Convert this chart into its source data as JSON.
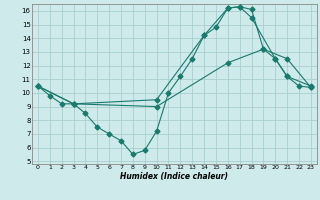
{
  "xlabel": "Humidex (Indice chaleur)",
  "xlim": [
    -0.5,
    23.5
  ],
  "ylim": [
    4.8,
    16.5
  ],
  "xticks": [
    0,
    1,
    2,
    3,
    4,
    5,
    6,
    7,
    8,
    9,
    10,
    11,
    12,
    13,
    14,
    15,
    16,
    17,
    18,
    19,
    20,
    21,
    22,
    23
  ],
  "yticks": [
    5,
    6,
    7,
    8,
    9,
    10,
    11,
    12,
    13,
    14,
    15,
    16
  ],
  "bg_color": "#ceeaea",
  "grid_color": "#aacece",
  "line_color": "#1a7a6e",
  "line1_x": [
    0,
    1,
    2,
    3,
    4,
    5,
    6,
    7,
    8,
    9,
    10,
    11,
    12,
    13,
    14,
    15,
    16,
    17,
    18,
    19,
    20,
    21,
    22,
    23
  ],
  "line1_y": [
    10.5,
    9.8,
    9.2,
    9.2,
    8.5,
    7.5,
    7.0,
    6.5,
    5.5,
    5.8,
    7.2,
    10.0,
    11.2,
    12.5,
    14.2,
    14.8,
    16.2,
    16.3,
    16.1,
    13.2,
    12.5,
    11.2,
    10.5,
    10.4
  ],
  "line2_x": [
    0,
    3,
    10,
    14,
    16,
    17,
    18,
    20,
    21,
    23
  ],
  "line2_y": [
    10.5,
    9.2,
    9.5,
    14.2,
    16.2,
    16.3,
    15.5,
    12.5,
    11.2,
    10.5
  ],
  "line3_x": [
    0,
    3,
    10,
    16,
    19,
    21,
    23
  ],
  "line3_y": [
    10.5,
    9.2,
    9.0,
    12.2,
    13.2,
    12.5,
    10.4
  ]
}
